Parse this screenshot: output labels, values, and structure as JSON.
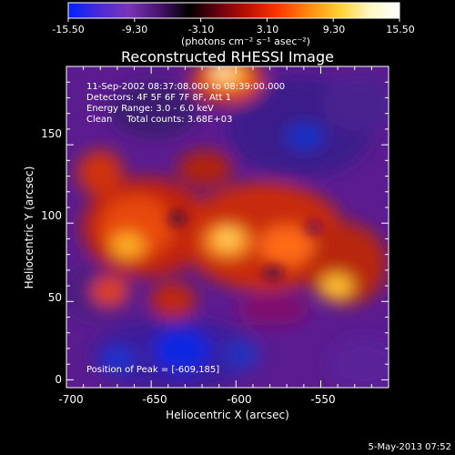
{
  "colorbar": {
    "ticks": [
      "-15.50",
      "-9.30",
      "-3.10",
      "3.10",
      "9.30",
      "15.50"
    ],
    "unit_label": "(photons cm⁻² s⁻¹ asec⁻²)",
    "min": -15.5,
    "max": 15.5,
    "colormap": [
      "#0020ff",
      "#4a2ad8",
      "#7a34b8",
      "#4a1470",
      "#000000",
      "#6a0010",
      "#c01000",
      "#ff3a00",
      "#ff8a10",
      "#ffd030",
      "#fff6c0",
      "#ffffff"
    ]
  },
  "plot": {
    "title": "Reconstructed RHESSI Image",
    "info_lines": [
      "11-Sep-2002 08:37:08.000 to 08:39:00.000",
      "Detectors: 4F 5F 6F 7F 8F, Att 1",
      "Energy Range: 3.0 - 6.0 keV",
      "Clean     Total counts: 3.68E+03"
    ],
    "peak_label": "Position of Peak = [-609,185]",
    "xlabel": "Heliocentric X (arcsec)",
    "ylabel": "Heliocentric Y (arcsec)",
    "xticks": [
      "-700",
      "-650",
      "-600",
      "-550"
    ],
    "yticks": [
      "0",
      "50",
      "100",
      "150"
    ],
    "xrange": [
      -700,
      -510
    ],
    "yrange": [
      -5,
      200
    ]
  },
  "footer": {
    "timestamp": "5-May-2013 07:52"
  }
}
